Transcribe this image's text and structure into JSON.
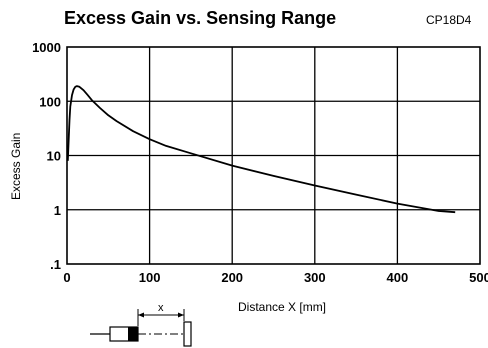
{
  "chart_data": {
    "type": "line",
    "title": "Excess Gain vs. Sensing Range",
    "model": "CP18D4",
    "xlabel": "Distance X [mm]",
    "ylabel": "Excess Gain",
    "xlim": [
      0,
      500
    ],
    "ylim": [
      0.1,
      1000
    ],
    "y_scale": "log",
    "grid": true,
    "x_ticks": [
      0,
      100,
      200,
      300,
      400,
      500
    ],
    "x_tick_labels": [
      "0",
      "100",
      "200",
      "300",
      "400",
      "500"
    ],
    "y_ticks": [
      0.1,
      1,
      10,
      100,
      1000
    ],
    "y_tick_labels": [
      ".1",
      "1",
      "10",
      "100",
      "1000"
    ],
    "series": [
      {
        "x": [
          1,
          2,
          3,
          4,
          6,
          8,
          10,
          12,
          15,
          20,
          25,
          30,
          40,
          50,
          60,
          80,
          100,
          120,
          150,
          200,
          250,
          300,
          350,
          400,
          450,
          470
        ],
        "y": [
          8,
          20,
          45,
          80,
          130,
          165,
          185,
          190,
          185,
          160,
          130,
          105,
          75,
          55,
          43,
          28,
          20,
          15,
          11,
          6.5,
          4.2,
          2.8,
          1.9,
          1.3,
          0.95,
          0.9
        ]
      }
    ],
    "diagram": {
      "dimension_label": "x"
    }
  }
}
